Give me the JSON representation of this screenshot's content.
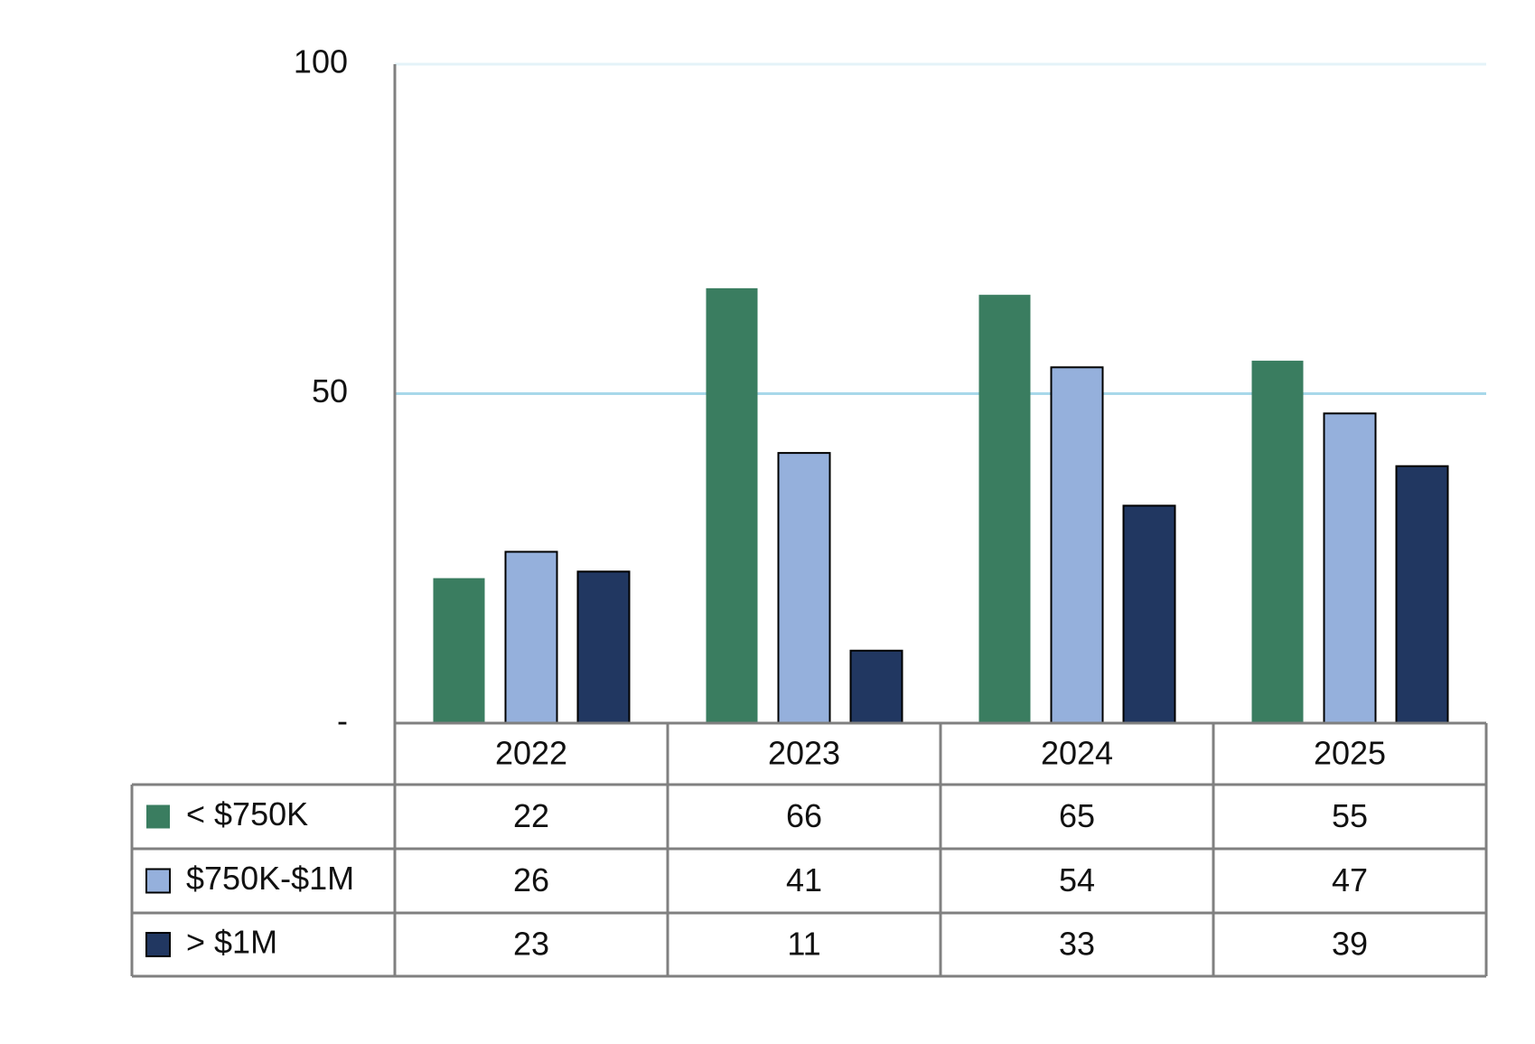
{
  "chart_data": {
    "type": "bar",
    "categories": [
      "2022",
      "2023",
      "2024",
      "2025"
    ],
    "series": [
      {
        "name": "< $750K",
        "color": "#3a7d60",
        "values": [
          22,
          66,
          65,
          55
        ]
      },
      {
        "name": "$750K-$1M",
        "color": "#95b0dc",
        "values": [
          26,
          41,
          54,
          47
        ]
      },
      {
        "name": "> $1M",
        "color": "#213761",
        "values": [
          23,
          11,
          33,
          39
        ]
      }
    ],
    "ylim": [
      0,
      100
    ],
    "yticks": [
      {
        "value": 0,
        "label": "-"
      },
      50,
      100
    ],
    "grid": true,
    "grid_color": "#a8d8ea"
  }
}
